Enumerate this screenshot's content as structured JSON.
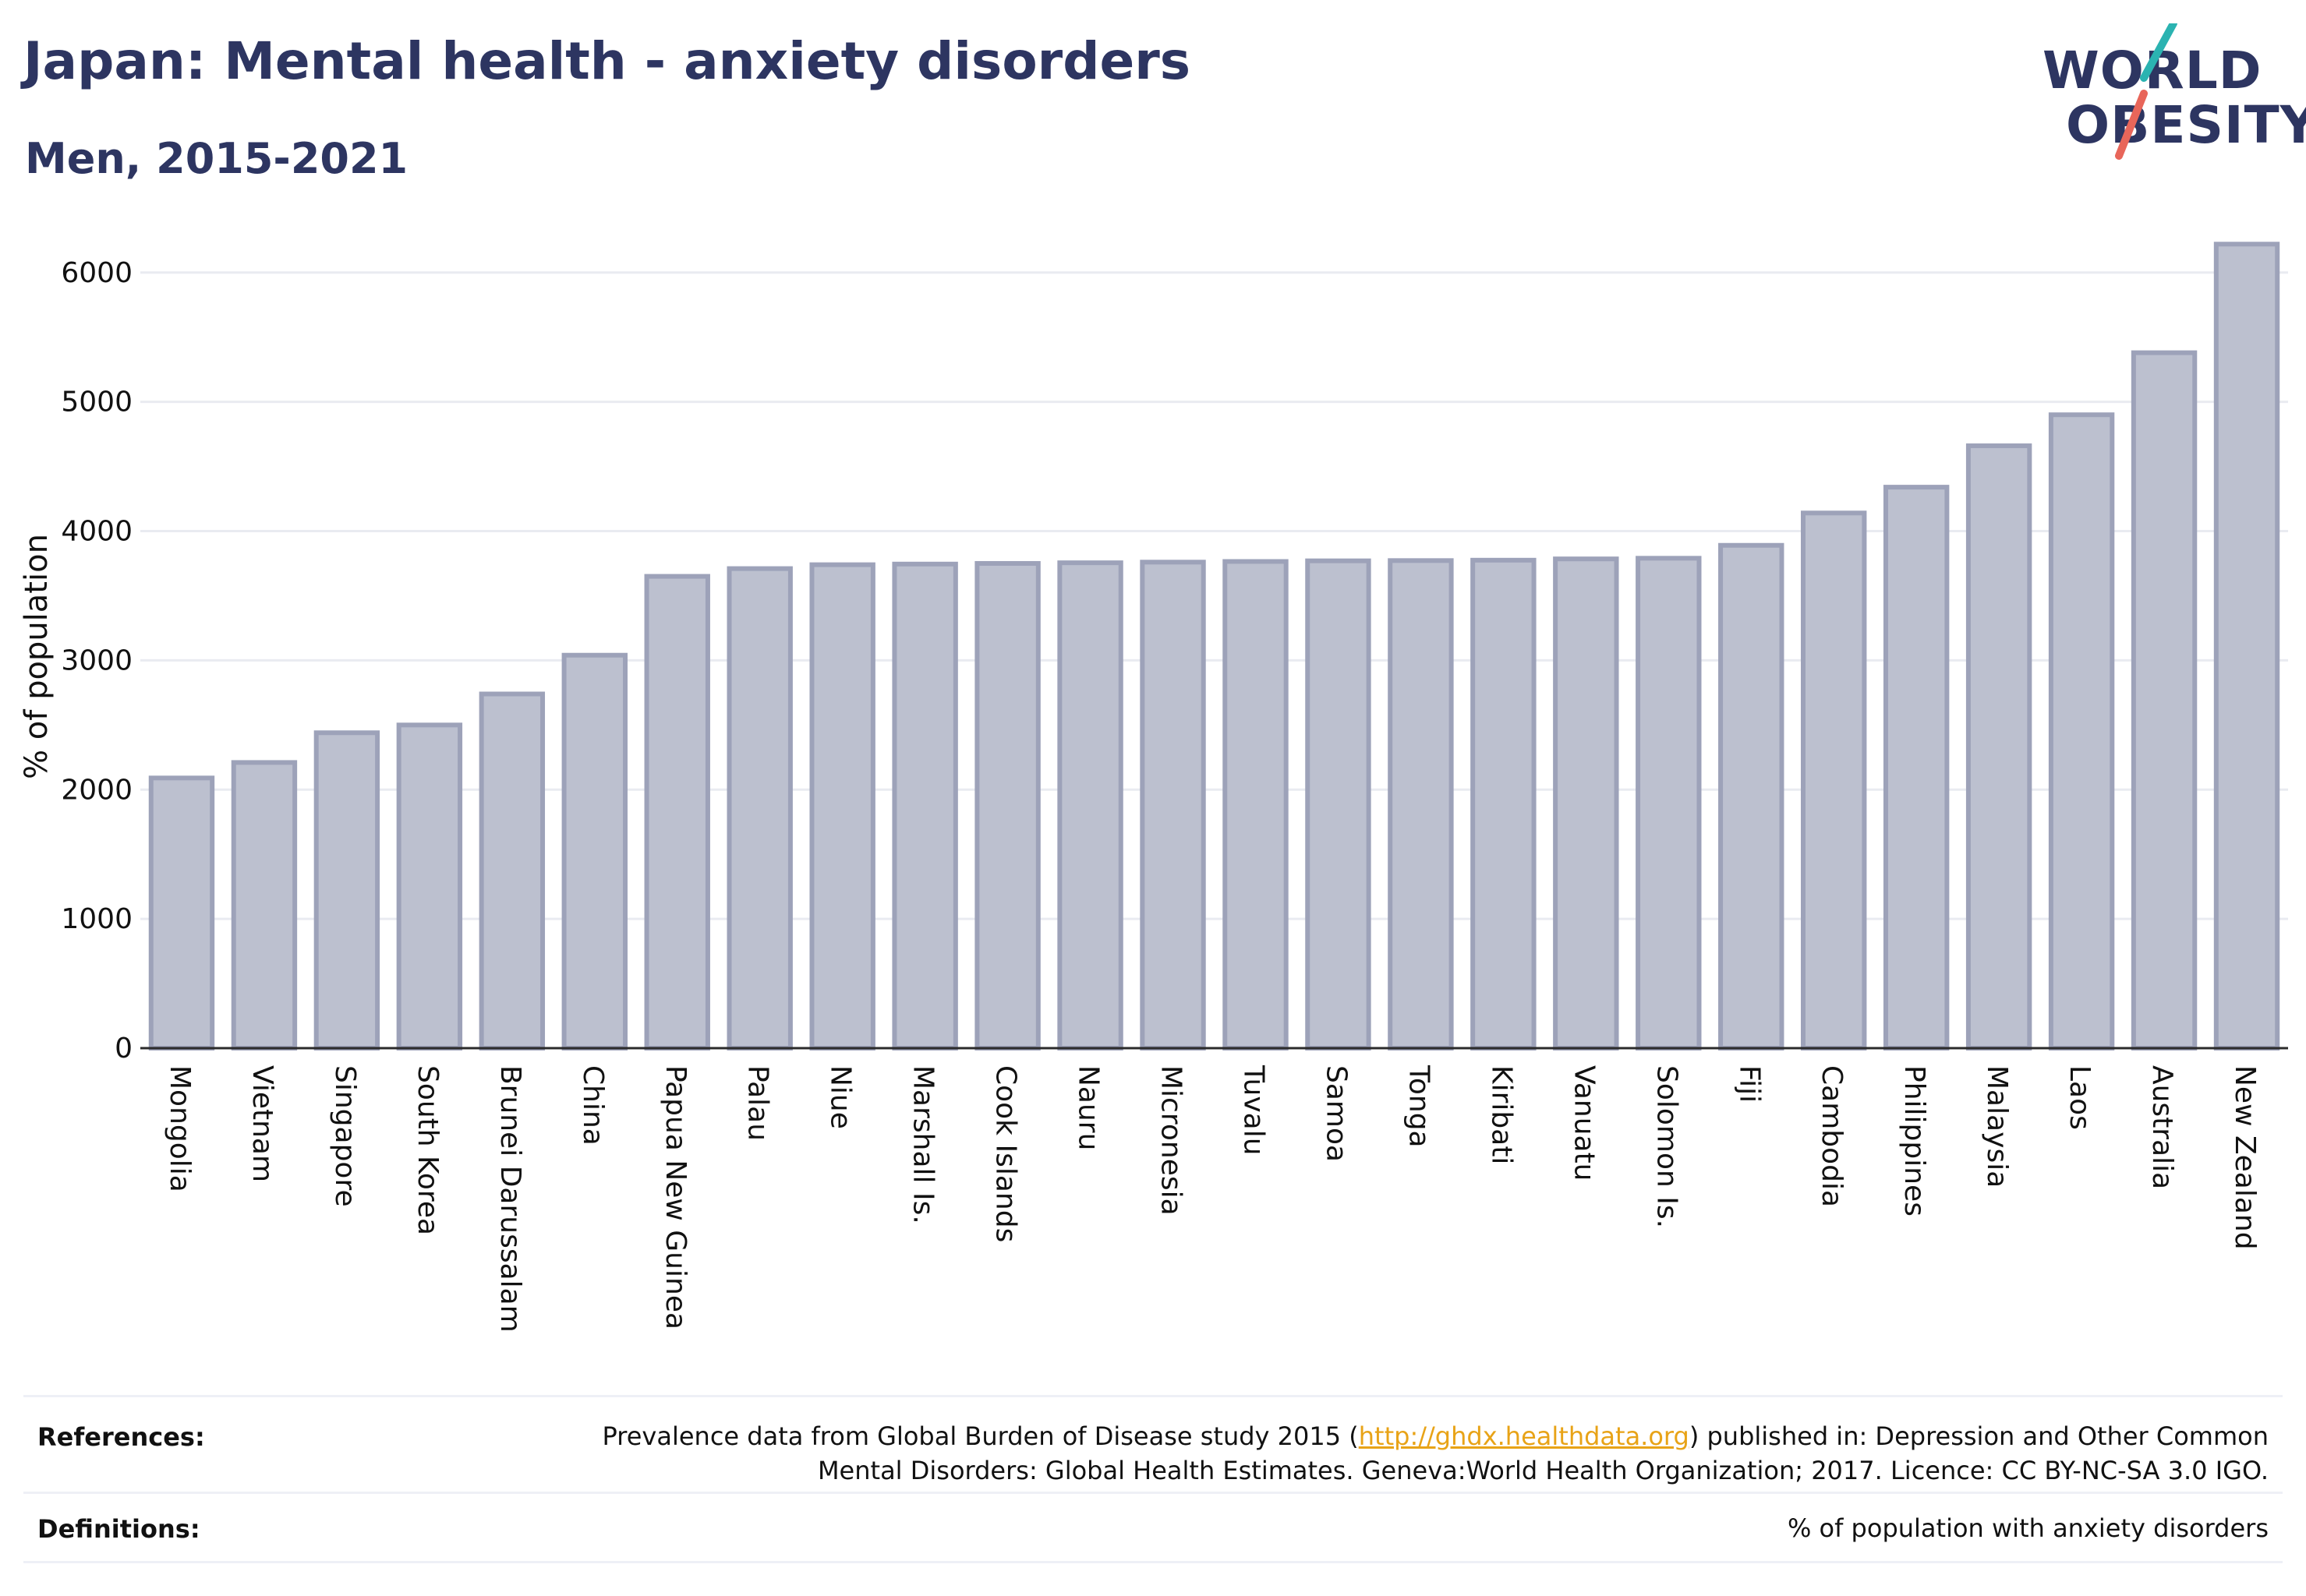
{
  "header": {
    "title": "Japan: Mental health - anxiety disorders",
    "subtitle": "Men, 2015-2021"
  },
  "logo": {
    "line1": "WORLD",
    "line2": "OBESITY",
    "accent_teal": "#2bb3b1",
    "accent_red": "#e8665a"
  },
  "colors": {
    "text": "#2d3561",
    "bar_fill": "#bcc0cf",
    "bar_stroke": "#9da2b9",
    "grid": "#e9ebf1",
    "link": "#e8a317"
  },
  "chart_data": {
    "type": "bar",
    "ylabel": "% of population",
    "xlabel": "",
    "ylim": [
      0,
      6300
    ],
    "yticks": [
      0,
      1000,
      2000,
      3000,
      4000,
      5000,
      6000
    ],
    "grid": true,
    "categories": [
      "Mongolia",
      "Vietnam",
      "Singapore",
      "South Korea",
      "Brunei Darussalam",
      "China",
      "Papua New Guinea",
      "Palau",
      "Niue",
      "Marshall Is.",
      "Cook Islands",
      "Nauru",
      "Micronesia",
      "Tuvalu",
      "Samoa",
      "Tonga",
      "Kiribati",
      "Vanuatu",
      "Solomon Is.",
      "Fiji",
      "Cambodia",
      "Philippines",
      "Malaysia",
      "Laos",
      "Australia",
      "New Zealand"
    ],
    "values": [
      2090,
      2210,
      2440,
      2500,
      2740,
      3040,
      3650,
      3710,
      3740,
      3745,
      3750,
      3755,
      3760,
      3765,
      3770,
      3772,
      3775,
      3785,
      3790,
      3890,
      4140,
      4340,
      4660,
      4900,
      5380,
      6220
    ]
  },
  "footer": {
    "references_label": "References:",
    "references_line1_pre": "Prevalence data from Global Burden of Disease study 2015 (",
    "references_link": "http://ghdx.healthdata.org",
    "references_line1_post": ") published in: Depression and Other Common",
    "references_line2": "Mental Disorders: Global Health Estimates. Geneva:World Health Organization; 2017. Licence: CC BY-NC-SA 3.0 IGO.",
    "definitions_label": "Definitions:",
    "definitions_text": "% of population with anxiety disorders"
  }
}
